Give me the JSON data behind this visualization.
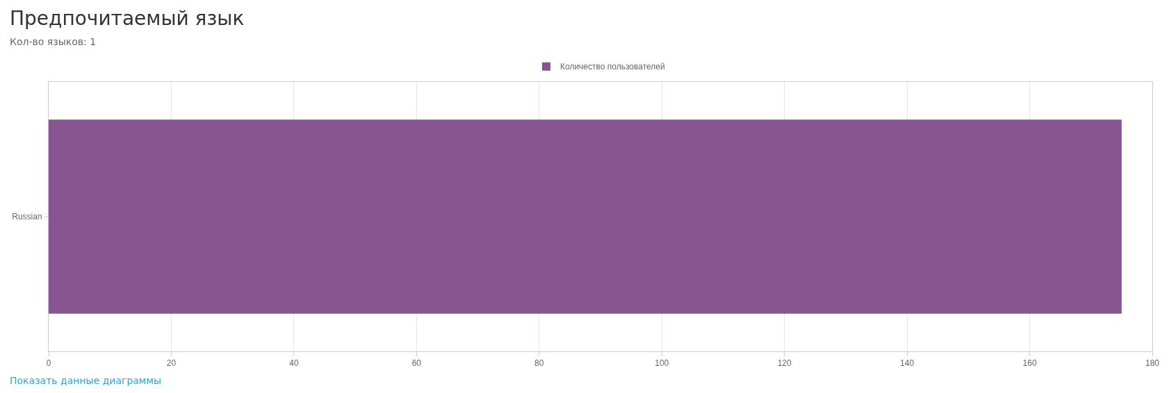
{
  "chart_data": {
    "type": "bar",
    "orientation": "horizontal",
    "title": "Предпочитаемый язык",
    "subtitle": "Кол-во языков: 1",
    "categories": [
      "Russian"
    ],
    "series": [
      {
        "name": "Количество пользователей",
        "color": "#87558f",
        "values": [
          175
        ]
      }
    ],
    "xlim": [
      0,
      180
    ],
    "xticks": [
      0,
      20,
      40,
      60,
      80,
      100,
      120,
      140,
      160,
      180
    ],
    "grid": "x",
    "legend": "top",
    "annotations": [
      "Показать данные диаграммы"
    ]
  }
}
